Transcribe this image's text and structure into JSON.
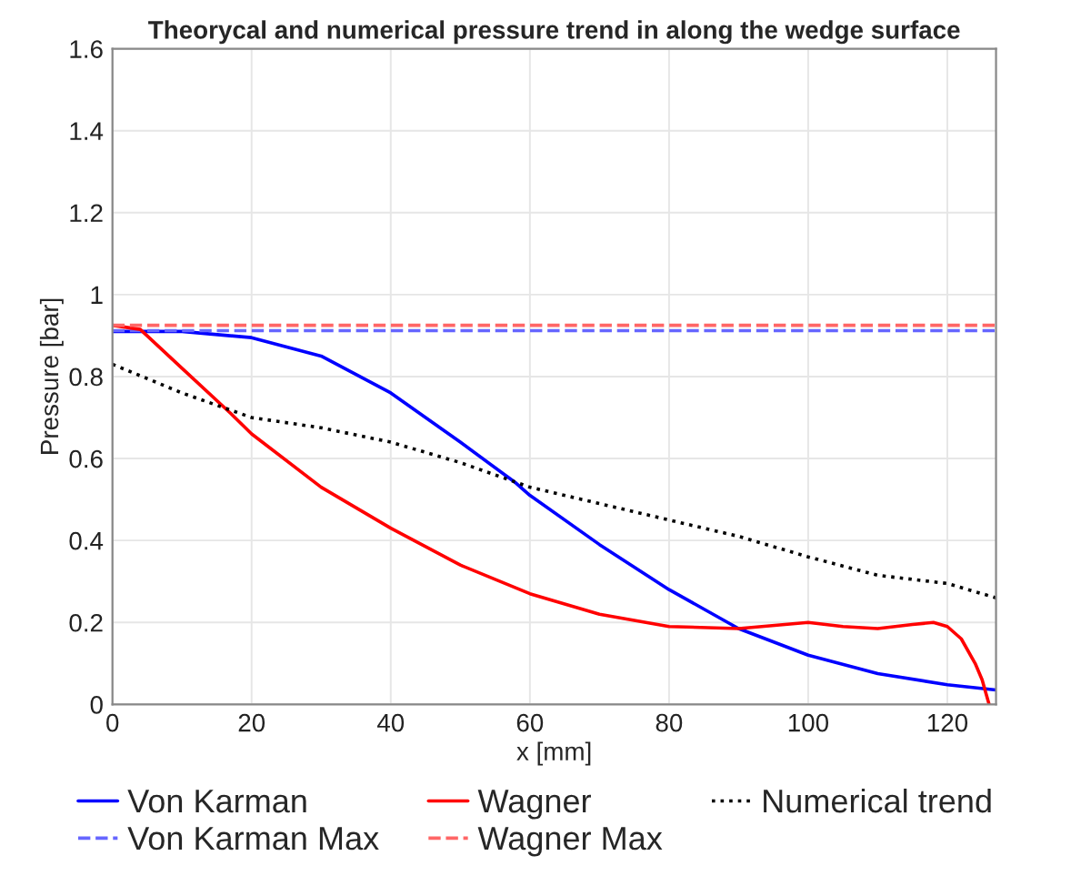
{
  "chart_data": {
    "type": "line",
    "title": "Theorycal and numerical pressure trend in along the wedge surface",
    "xlabel": "x [mm]",
    "ylabel": "Pressure [bar]",
    "xlim": [
      0,
      127
    ],
    "xticks": [
      0,
      20,
      40,
      60,
      80,
      100,
      120
    ],
    "ylim": [
      0,
      1.6
    ],
    "yticks": [
      0,
      0.2,
      0.4,
      0.6,
      0.8,
      1,
      1.2,
      1.4,
      1.6
    ],
    "grid": true,
    "legend": "bottom",
    "series": [
      {
        "name": "Von Karman",
        "color": "#0000ff",
        "line_style": "solid",
        "x": [
          0,
          10,
          20,
          30,
          40,
          50,
          58,
          60,
          70,
          80,
          90,
          100,
          110,
          120,
          127
        ],
        "values": [
          0.91,
          0.91,
          0.895,
          0.85,
          0.76,
          0.64,
          0.54,
          0.51,
          0.39,
          0.28,
          0.185,
          0.12,
          0.075,
          0.048,
          0.035
        ]
      },
      {
        "name": "Von Karman Max",
        "color": "#6666ff",
        "line_style": "dashed",
        "x": [
          0,
          127
        ],
        "values": [
          0.912,
          0.912
        ]
      },
      {
        "name": "Wagner",
        "color": "#ff0000",
        "line_style": "solid",
        "x": [
          0,
          4,
          10,
          17,
          20,
          30,
          40,
          50,
          60,
          70,
          80,
          90,
          100,
          105,
          110,
          115,
          118,
          120,
          122,
          124,
          125,
          126
        ],
        "values": [
          0.925,
          0.915,
          0.82,
          0.71,
          0.66,
          0.53,
          0.43,
          0.34,
          0.27,
          0.22,
          0.19,
          0.185,
          0.2,
          0.19,
          0.185,
          0.195,
          0.2,
          0.19,
          0.16,
          0.1,
          0.06,
          0.0
        ]
      },
      {
        "name": "Wagner Max",
        "color": "#ff6666",
        "line_style": "dashed",
        "x": [
          0,
          127
        ],
        "values": [
          0.925,
          0.925
        ]
      },
      {
        "name": "Numerical trend",
        "color": "#000000",
        "line_style": "dotted",
        "x": [
          0,
          10,
          20,
          30,
          40,
          50,
          60,
          70,
          80,
          90,
          100,
          110,
          120,
          127
        ],
        "values": [
          0.83,
          0.76,
          0.7,
          0.675,
          0.64,
          0.59,
          0.53,
          0.49,
          0.45,
          0.41,
          0.36,
          0.315,
          0.295,
          0.26
        ]
      }
    ]
  }
}
